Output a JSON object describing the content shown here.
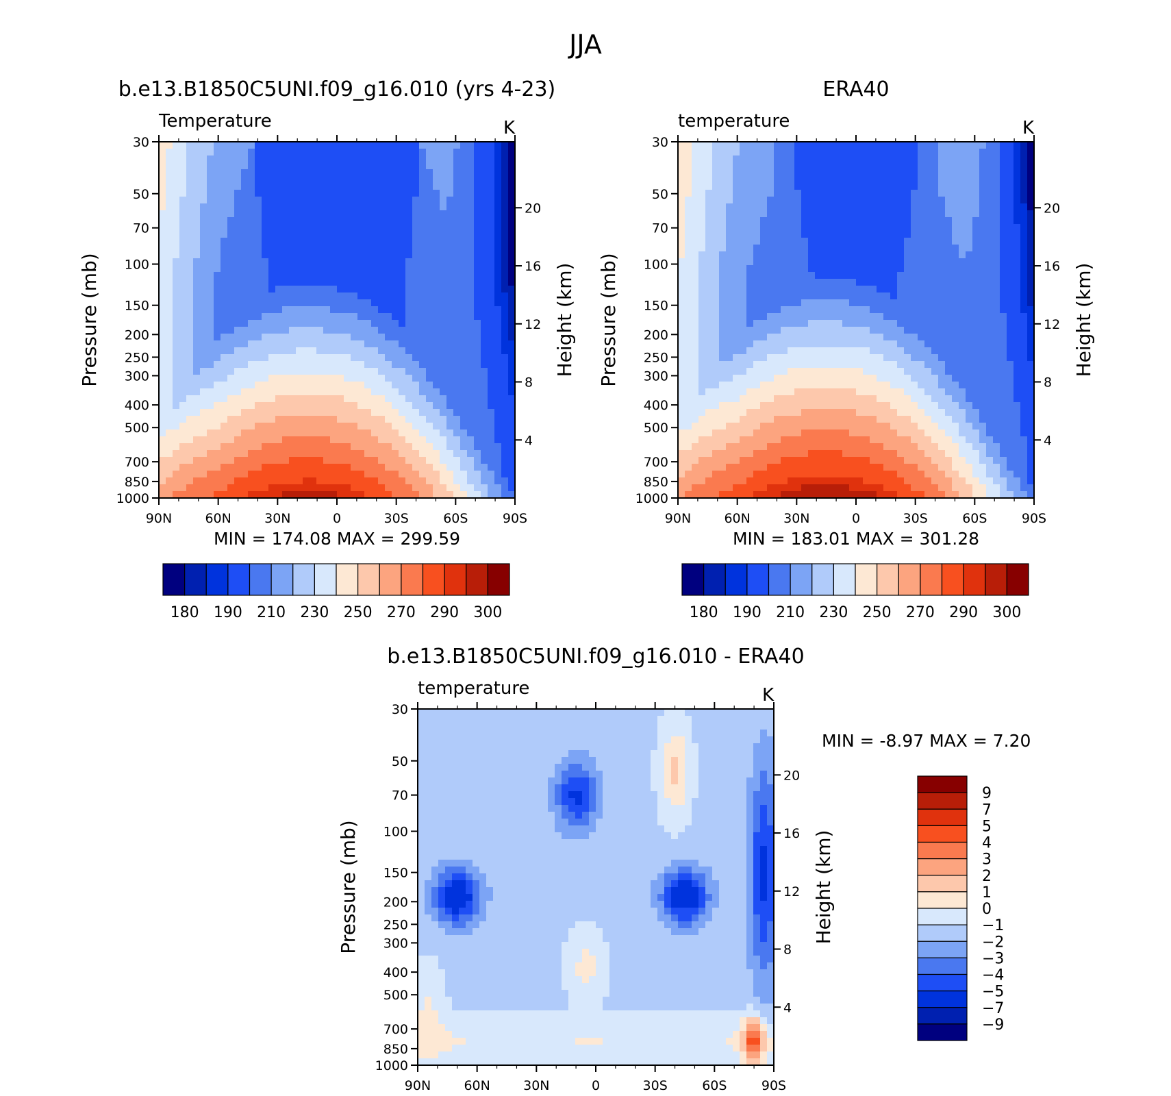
{
  "figure": {
    "title": "JJA",
    "colors": {
      "abs_palette": [
        "#00007f",
        "#0020b0",
        "#0033dd",
        "#1e4ef5",
        "#4a78f0",
        "#7ca4f5",
        "#b0cbfa",
        "#d8e8fc",
        "#fde8d4",
        "#fdc8ac",
        "#fca47f",
        "#fa7a4f",
        "#f8501f",
        "#e0320d",
        "#b81e08",
        "#870000"
      ],
      "diff_palette": [
        "#00007f",
        "#0020b0",
        "#0033dd",
        "#1e4ef5",
        "#4a78f0",
        "#7ca4f5",
        "#b0cbfa",
        "#d8e8fc",
        "#fde8d4",
        "#fdc8ac",
        "#fca47f",
        "#fa7a4f",
        "#f8501f",
        "#e0320d",
        "#b81e08",
        "#870000"
      ]
    }
  },
  "chart_data": [
    {
      "type": "contour",
      "title": "b.e13.B1850C5UNI.f09_g16.010 (yrs 4-23)",
      "subtitle": "Temperature",
      "units": "K",
      "xlabel": "",
      "ylabel": "Pressure (mb)",
      "y2label": "Height (km)",
      "x_ticks": [
        "90N",
        "60N",
        "30N",
        "0",
        "30S",
        "60S",
        "90S"
      ],
      "y_ticks": [
        30,
        50,
        70,
        100,
        150,
        200,
        250,
        300,
        400,
        500,
        700,
        850,
        1000
      ],
      "y2_ticks": [
        4,
        8,
        12,
        16,
        20
      ],
      "ylim": [
        1000,
        30
      ],
      "y_scale": "log",
      "min_label": "MIN = 174.08  MAX = 299.59",
      "colorbar_labels": [
        "180",
        "190",
        "210",
        "230",
        "250",
        "270",
        "290",
        "300"
      ],
      "colorbar_orientation": "horizontal"
    },
    {
      "type": "contour",
      "title": "ERA40",
      "subtitle": "temperature",
      "units": "K",
      "xlabel": "",
      "ylabel": "Pressure (mb)",
      "y2label": "Height (km)",
      "x_ticks": [
        "90N",
        "60N",
        "30N",
        "0",
        "30S",
        "60S",
        "90S"
      ],
      "y_ticks": [
        30,
        50,
        70,
        100,
        150,
        200,
        250,
        300,
        400,
        500,
        700,
        850,
        1000
      ],
      "y2_ticks": [
        4,
        8,
        12,
        16,
        20
      ],
      "ylim": [
        1000,
        30
      ],
      "y_scale": "log",
      "min_label": "MIN = 183.01  MAX = 301.28",
      "colorbar_labels": [
        "180",
        "190",
        "210",
        "230",
        "250",
        "270",
        "290",
        "300"
      ],
      "colorbar_orientation": "horizontal"
    },
    {
      "type": "contour",
      "title": "b.e13.B1850C5UNI.f09_g16.010 - ERA40",
      "subtitle": "temperature",
      "units": "K",
      "xlabel": "",
      "ylabel": "Pressure (mb)",
      "y2label": "Height (km)",
      "x_ticks": [
        "90N",
        "60N",
        "30N",
        "0",
        "30S",
        "60S",
        "90S"
      ],
      "y_ticks": [
        30,
        50,
        70,
        100,
        150,
        200,
        250,
        300,
        400,
        500,
        700,
        850,
        1000
      ],
      "y2_ticks": [
        4,
        8,
        12,
        16,
        20
      ],
      "ylim": [
        1000,
        30
      ],
      "y_scale": "log",
      "min_label": "MIN =   -8.97   MAX =    7.20",
      "colorbar_labels": [
        "9",
        "7",
        "5",
        "4",
        "3",
        "2",
        "1",
        "0",
        "−1",
        "−2",
        "−3",
        "−4",
        "−5",
        "−7",
        "−9"
      ],
      "colorbar_orientation": "vertical"
    }
  ]
}
